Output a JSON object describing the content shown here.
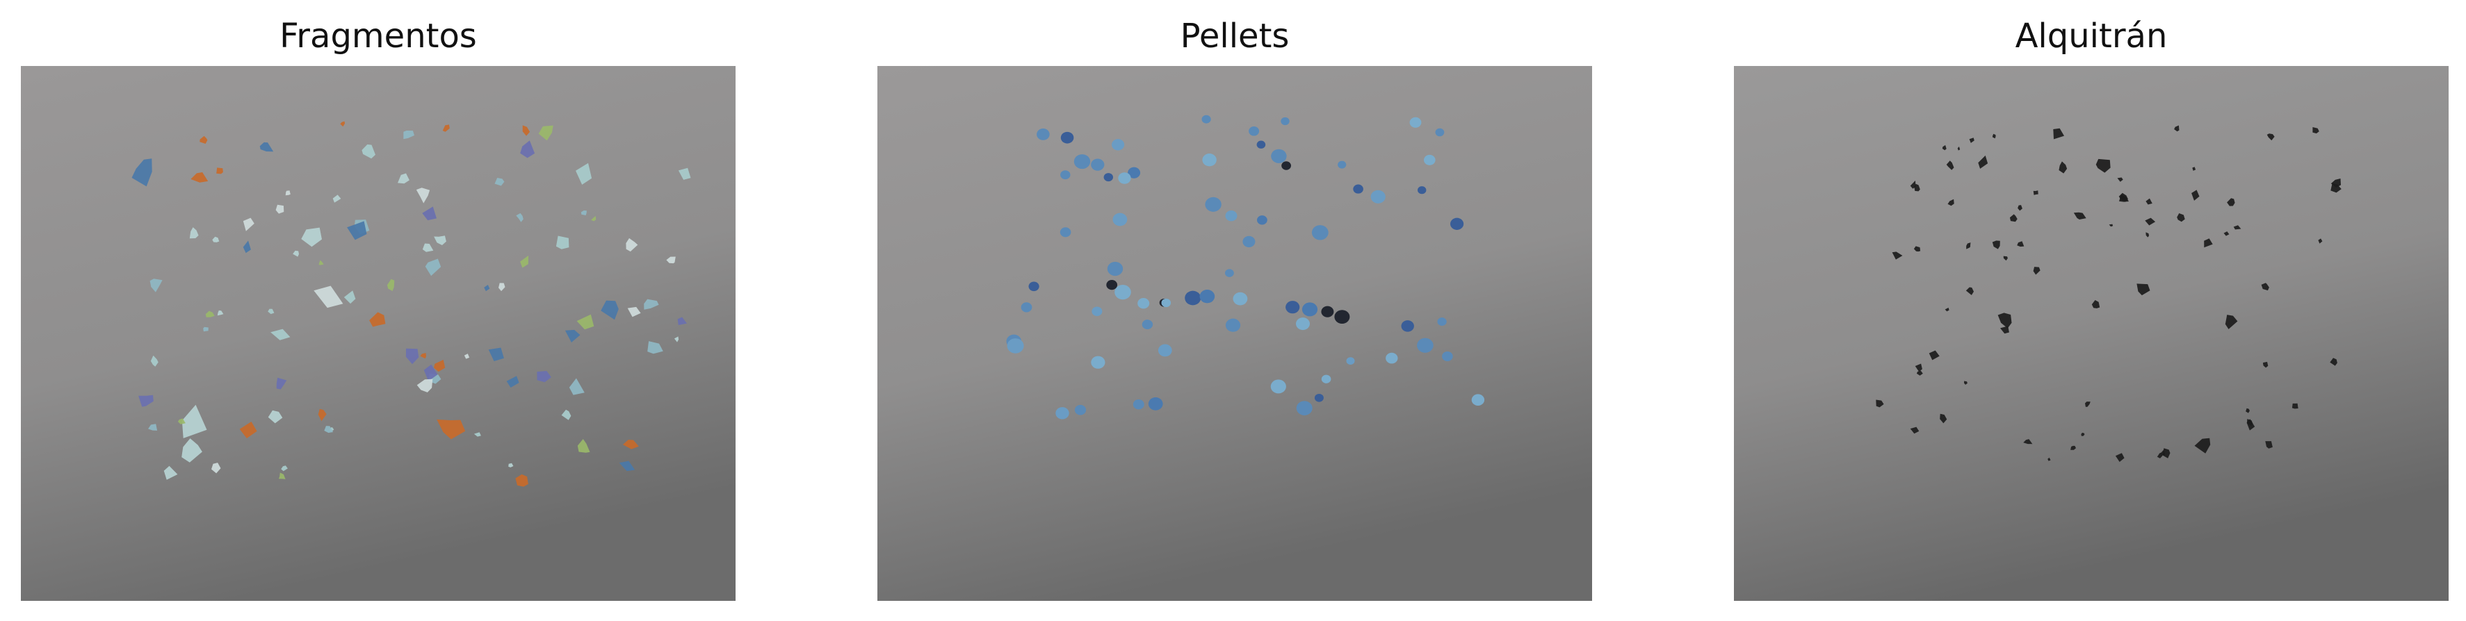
{
  "figure": {
    "panels": [
      {
        "title": "Fragmentos",
        "subject": "photo-plastic-fragments"
      },
      {
        "title": "Pellets",
        "subject": "photo-plastic-pellets"
      },
      {
        "title": "Alquitrán",
        "subject": "photo-tar-balls"
      }
    ]
  },
  "colors": {
    "background_top": "#9a9898",
    "background_bottom": "#6a6a6a",
    "fragment_light": "#b7d4d4",
    "fragment_blue": "#4a78a8",
    "fragment_orange": "#c86a2a",
    "pellet_blue": "#5a8ab8",
    "pellet_dark": "#222630",
    "tar_black": "#1c1c1c"
  }
}
